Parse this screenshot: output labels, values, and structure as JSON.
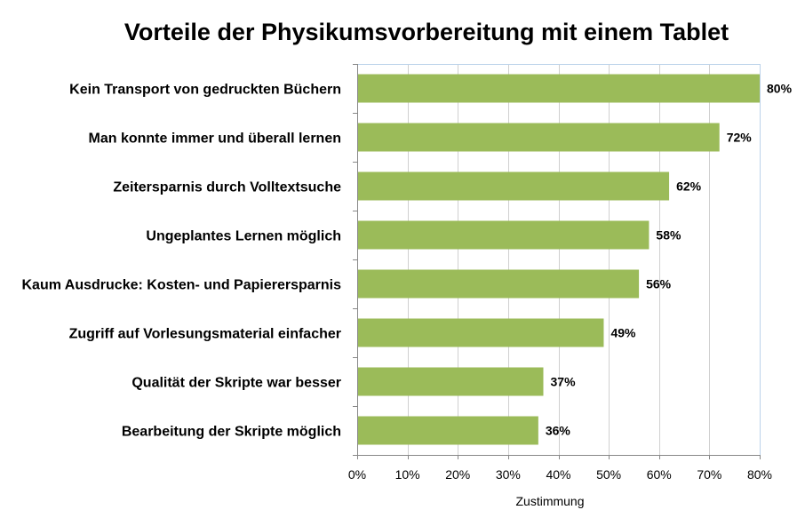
{
  "chart_data": {
    "type": "bar",
    "orientation": "horizontal",
    "title": "Vorteile der Physikumsvorbereitung mit einem Tablet",
    "xlabel": "Zustimmung",
    "ylabel": "",
    "xlim": [
      0,
      80
    ],
    "x_ticks": [
      "0%",
      "10%",
      "20%",
      "30%",
      "40%",
      "50%",
      "60%",
      "70%",
      "80%"
    ],
    "grid": true,
    "legend": "none",
    "bar_color": "#9bbb59",
    "categories": [
      "Kein Transport von gedruckten Büchern",
      "Man konnte immer und überall lernen",
      "Zeitersparnis durch Volltextsuche",
      "Ungeplantes Lernen möglich",
      "Kaum Ausdrucke: Kosten- und Papierersparnis",
      "Zugriff auf Vorlesungsmaterial einfacher",
      "Qualität der Skripte war besser",
      "Bearbeitung der Skripte möglich"
    ],
    "values": [
      80,
      72,
      62,
      58,
      56,
      49,
      37,
      36
    ],
    "value_labels": [
      "80%",
      "72%",
      "62%",
      "58%",
      "56%",
      "49%",
      "37%",
      "36%"
    ]
  }
}
